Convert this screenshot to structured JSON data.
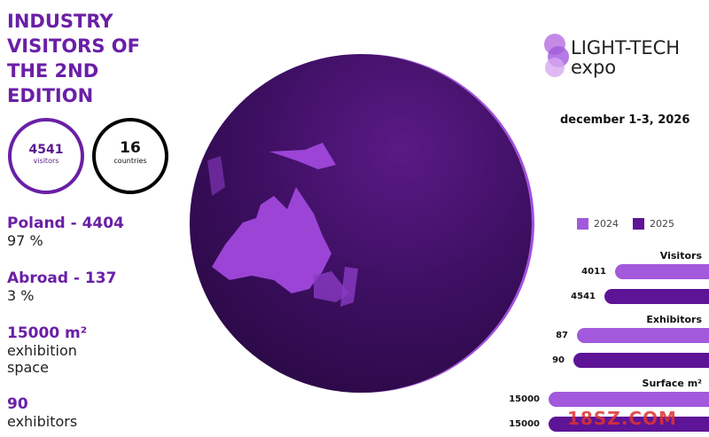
{
  "title": "INDUSTRY VISITORS OF THE 2ND EDITION",
  "visitors": {
    "value": "4541",
    "label": "visitors"
  },
  "countries": {
    "value": "16",
    "label": "countries"
  },
  "stats": [
    {
      "heading": "Poland - 4404",
      "sub": "97 %"
    },
    {
      "heading": "Abroad - 137",
      "sub": "3 %"
    },
    {
      "heading": "15000 m²",
      "sub": "exhibition space"
    },
    {
      "heading": "90",
      "sub": "exhibitors"
    }
  ],
  "logo": {
    "line1": "LIGHT-TECH",
    "line2": "expo"
  },
  "date": "december 1-3, 2026",
  "colors": {
    "c2024": "#a259dc",
    "c2025": "#5e1496",
    "accent": "#6a1fa6"
  },
  "chart_data": {
    "type": "bar",
    "legend": [
      "2024",
      "2025"
    ],
    "categories": [
      "Visitors",
      "Exhibitors",
      "Surface m²"
    ],
    "series": [
      {
        "name": "2024",
        "values": [
          4011,
          87,
          15000
        ]
      },
      {
        "name": "2025",
        "values": [
          4541,
          90,
          15000
        ]
      }
    ]
  },
  "watermark": "18SZ.COM"
}
